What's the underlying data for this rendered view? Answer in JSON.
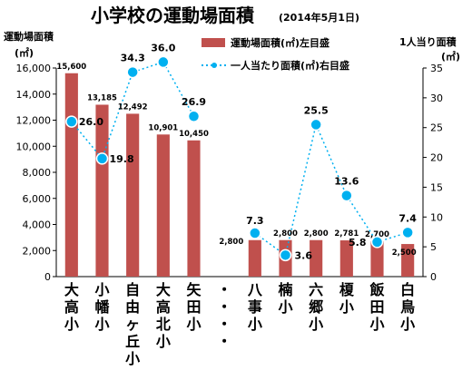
{
  "chart_data": {
    "type": "bar",
    "title": "小学校の運動場面積",
    "subtitle": "(2014年5月1日)",
    "ylabel_left": "運動場面積",
    "ylabel_left_unit": "(㎡)",
    "ylabel_right": "1人当り面積",
    "ylabel_right_unit": "(㎡)",
    "ylim_left": [
      0,
      16000
    ],
    "yticks_left": [
      0,
      2000,
      4000,
      6000,
      8000,
      10000,
      12000,
      14000,
      16000
    ],
    "ytick_labels_left": [
      "0",
      "2,000",
      "4,000",
      "6,000",
      "8,000",
      "10,000",
      "12,000",
      "14,000",
      "16,000"
    ],
    "ylim_right": [
      0,
      35
    ],
    "yticks_right": [
      0,
      5,
      10,
      15,
      20,
      25,
      30,
      35
    ],
    "categories": [
      "大高小",
      "小幡小",
      "自由ヶ丘小",
      "大高北小",
      "矢田小",
      "・・・・",
      "八事小",
      "楠小",
      "六郷小",
      "榎小",
      "飯田小",
      "白鳥小"
    ],
    "series": [
      {
        "name": "運動場面積(㎡)左目盛",
        "kind": "bar",
        "axis": "left",
        "color": "#C0504D",
        "values": [
          15600,
          13185,
          12492,
          10901,
          10450,
          null,
          2800,
          2800,
          2800,
          2781,
          2700,
          2500
        ],
        "labels": [
          "15,600",
          "13,185",
          "12,492",
          "10,901",
          "10,450",
          "",
          "2,800",
          "2,800",
          "2,800",
          "2,781",
          "2,700",
          "2,500"
        ]
      },
      {
        "name": "一人当たり面積(㎡)右目盛",
        "kind": "line",
        "axis": "right",
        "color": "#00B0F0",
        "values": [
          26.0,
          19.8,
          34.3,
          36.0,
          26.9,
          null,
          7.3,
          3.6,
          25.5,
          13.6,
          5.8,
          7.4
        ],
        "labels": [
          "26.0",
          "19.8",
          "34.3",
          "36.0",
          "26.9",
          "",
          "7.3",
          "3.6",
          "25.5",
          "13.6",
          "5.8",
          "7.4"
        ]
      }
    ],
    "legend": "top-right",
    "grid": false
  }
}
